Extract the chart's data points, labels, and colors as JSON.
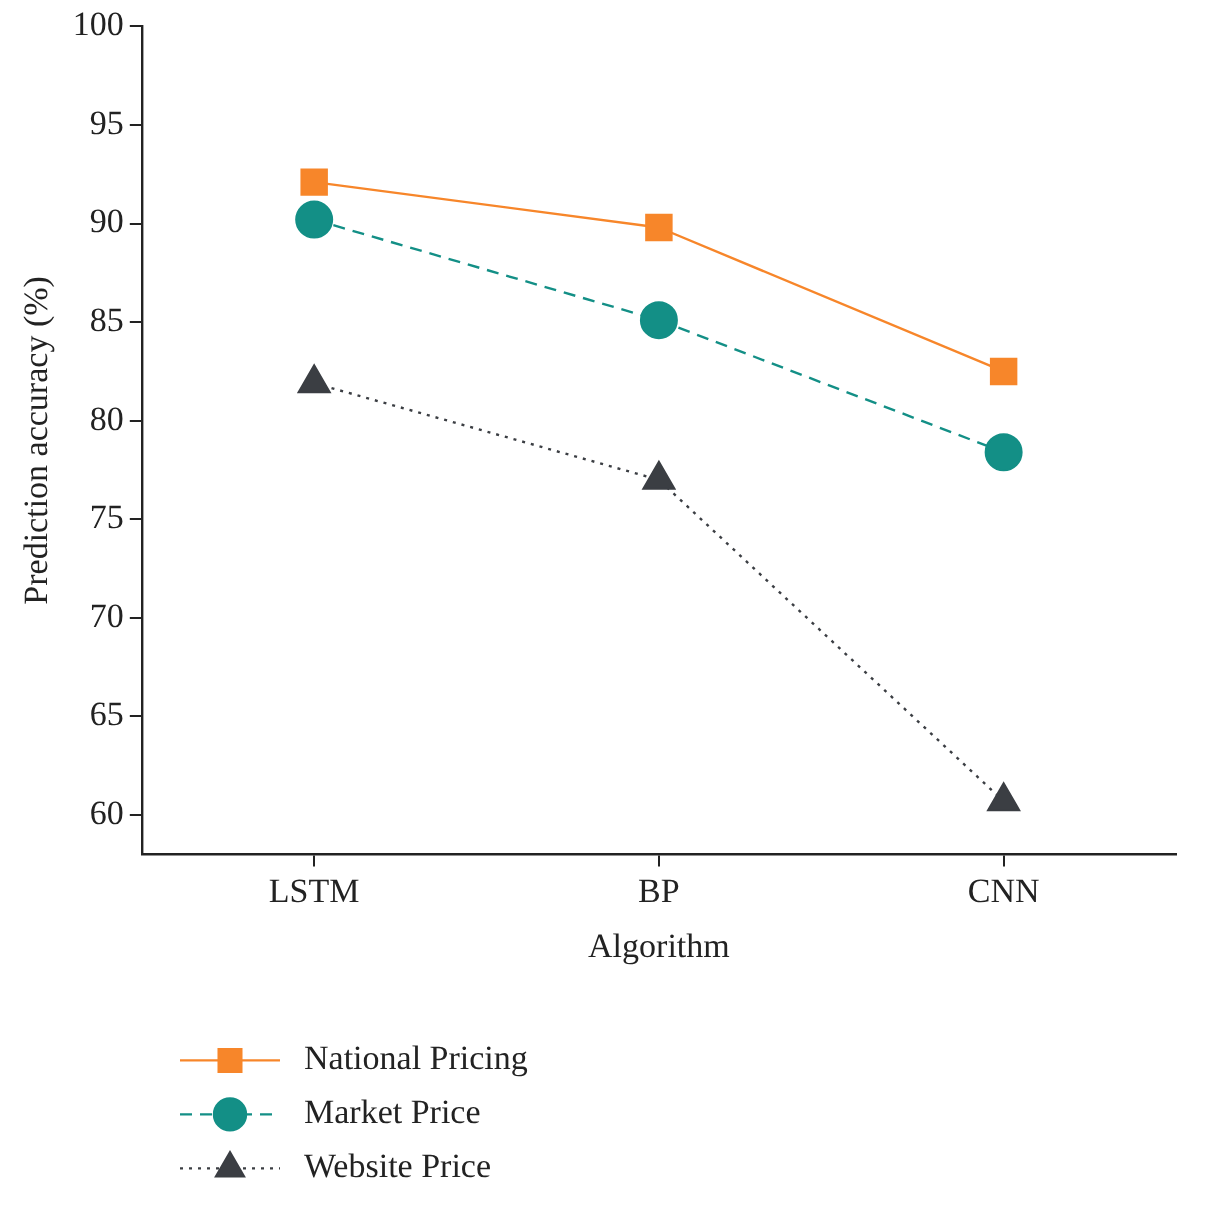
{
  "chart_data": {
    "type": "line",
    "xlabel": "Algorithm",
    "ylabel": "Prediction accuracy (%)",
    "categories": [
      "LSTM",
      "BP",
      "CNN"
    ],
    "series": [
      {
        "name": "National Pricing",
        "color": "#f7862a",
        "values": [
          92.1,
          89.8,
          82.5
        ],
        "marker": "square",
        "line_style": "solid"
      },
      {
        "name": "Market Price",
        "color": "#138f86",
        "values": [
          90.2,
          85.1,
          78.4
        ],
        "marker": "circle",
        "line_style": "dashed"
      },
      {
        "name": "Website Price",
        "color": "#3b3e43",
        "values": [
          81.9,
          77.0,
          60.7
        ],
        "marker": "triangle",
        "line_style": "dotted"
      }
    ],
    "ylim": [
      58,
      100
    ],
    "yticks": [
      60,
      65,
      70,
      75,
      80,
      85,
      90,
      95,
      100
    ],
    "grid": false,
    "legend": "bottom left"
  }
}
